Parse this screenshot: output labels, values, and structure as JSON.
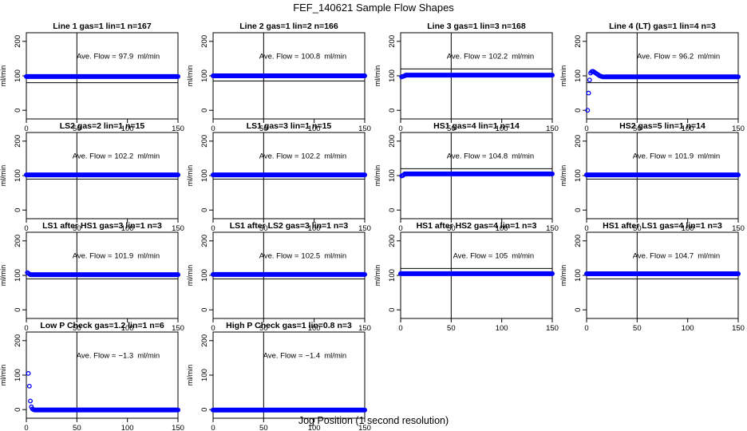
{
  "page": {
    "title": "FEF_140621  Sample Flow Shapes",
    "xlabel": "Jog Position (1 second resolution)",
    "ylabel": "ml/min",
    "x_ticks": [
      0,
      50,
      100,
      150
    ],
    "y_ticks": [
      0,
      100,
      200
    ],
    "y_tick_labels": [
      "0",
      "100",
      "200"
    ],
    "ave_prefix": "Ave. Flow =",
    "ave_unit": "ml/min"
  },
  "colors": {
    "points": "#0000ff",
    "axes": "#000000",
    "text": "#000000",
    "background": "#ffffff"
  },
  "chart_data": [
    {
      "type": "scatter",
      "title": "Line 1 gas=1 lin=1 n=167",
      "ave_flow": "97.9",
      "xlim": [
        0,
        150
      ],
      "ylim": [
        -25,
        225
      ],
      "vline_x": 50,
      "hline_y": 80,
      "series": [
        {
          "segments": [
            [
              0,
              150,
              97.9
            ]
          ],
          "points": []
        }
      ]
    },
    {
      "type": "scatter",
      "title": "Line 2 gas=1 lin=2 n=166",
      "ave_flow": "100.8",
      "xlim": [
        0,
        150
      ],
      "ylim": [
        -25,
        225
      ],
      "vline_x": 50,
      "hline_y": 85,
      "series": [
        {
          "segments": [
            [
              0,
              150,
              100
            ]
          ],
          "points": []
        }
      ]
    },
    {
      "type": "scatter",
      "title": "Line 3 gas=1 lin=3 n=168",
      "ave_flow": "102.2",
      "xlim": [
        0,
        150
      ],
      "ylim": [
        -25,
        225
      ],
      "vline_x": 50,
      "hline_y": 120,
      "series": [
        {
          "segments": [
            [
              5,
              150,
              102
            ]
          ],
          "points": [
            [
              1,
              97
            ],
            [
              2,
              98
            ],
            [
              3,
              99
            ],
            [
              4,
              100
            ]
          ]
        }
      ]
    },
    {
      "type": "scatter",
      "title": "Line 4 (LT) gas=1 lin=4 n=3",
      "ave_flow": "96.2",
      "xlim": [
        0,
        150
      ],
      "ylim": [
        -25,
        225
      ],
      "vline_x": 50,
      "hline_y": 80,
      "series": [
        {
          "segments": [
            [
              18,
              150,
              97
            ]
          ],
          "points": [
            [
              1,
              0
            ],
            [
              2,
              50
            ],
            [
              3,
              88
            ],
            [
              4,
              108
            ],
            [
              5,
              112
            ],
            [
              6,
              113
            ],
            [
              7,
              112
            ],
            [
              8,
              110
            ],
            [
              9,
              108
            ],
            [
              10,
              106
            ],
            [
              11,
              104
            ],
            [
              12,
              102
            ],
            [
              13,
              100
            ],
            [
              14,
              99
            ],
            [
              15,
              98
            ],
            [
              16,
              97
            ],
            [
              17,
              97
            ]
          ]
        }
      ]
    },
    {
      "type": "scatter",
      "title": "LS2 gas=2 lin=1 n=15",
      "ave_flow": "102.2",
      "xlim": [
        0,
        150
      ],
      "ylim": [
        -25,
        225
      ],
      "vline_x": 50,
      "hline_y": 90,
      "series": [
        {
          "segments": [
            [
              0,
              150,
              102
            ]
          ],
          "points": []
        }
      ]
    },
    {
      "type": "scatter",
      "title": "LS1 gas=3 lin=1 n=15",
      "ave_flow": "102.2",
      "xlim": [
        0,
        150
      ],
      "ylim": [
        -25,
        225
      ],
      "vline_x": 50,
      "hline_y": 90,
      "series": [
        {
          "segments": [
            [
              0,
              150,
              102
            ]
          ],
          "points": []
        }
      ]
    },
    {
      "type": "scatter",
      "title": "HS1 gas=4 lin=1 n=14",
      "ave_flow": "104.8",
      "xlim": [
        0,
        150
      ],
      "ylim": [
        -25,
        225
      ],
      "vline_x": 50,
      "hline_y": 120,
      "series": [
        {
          "segments": [
            [
              4,
              150,
              105
            ]
          ],
          "points": [
            [
              1,
              99
            ],
            [
              2,
              100
            ],
            [
              3,
              102
            ]
          ]
        }
      ]
    },
    {
      "type": "scatter",
      "title": "HS2 gas=5 lin=1 n=14",
      "ave_flow": "101.9",
      "xlim": [
        0,
        150
      ],
      "ylim": [
        -25,
        225
      ],
      "vline_x": 50,
      "hline_y": 90,
      "series": [
        {
          "segments": [
            [
              0,
              150,
              102
            ]
          ],
          "points": []
        }
      ]
    },
    {
      "type": "scatter",
      "title": "LS1 after HS1 gas=3 lin=1 n=3",
      "ave_flow": "101.9",
      "xlim": [
        0,
        150
      ],
      "ylim": [
        -25,
        225
      ],
      "vline_x": 50,
      "hline_y": 90,
      "series": [
        {
          "segments": [
            [
              4,
              150,
              102
            ]
          ],
          "points": [
            [
              1,
              108
            ],
            [
              2,
              106
            ],
            [
              3,
              104
            ]
          ]
        }
      ]
    },
    {
      "type": "scatter",
      "title": "LS1 after LS2 gas=3 lin=1 n=3",
      "ave_flow": "102.5",
      "xlim": [
        0,
        150
      ],
      "ylim": [
        -25,
        225
      ],
      "vline_x": 50,
      "hline_y": 90,
      "series": [
        {
          "segments": [
            [
              0,
              150,
              102.5
            ]
          ],
          "points": []
        }
      ]
    },
    {
      "type": "scatter",
      "title": "HS1 after HS2 gas=4 lin=1 n=3",
      "ave_flow": "105",
      "xlim": [
        0,
        150
      ],
      "ylim": [
        -25,
        225
      ],
      "vline_x": 50,
      "hline_y": 120,
      "series": [
        {
          "segments": [
            [
              0,
              150,
              105
            ]
          ],
          "points": []
        }
      ]
    },
    {
      "type": "scatter",
      "title": "HS1 after LS1 gas=4 lin=1 n=3",
      "ave_flow": "104.7",
      "xlim": [
        0,
        150
      ],
      "ylim": [
        -25,
        225
      ],
      "vline_x": 50,
      "hline_y": 90,
      "series": [
        {
          "segments": [
            [
              0,
              150,
              104.7
            ]
          ],
          "points": []
        }
      ]
    },
    {
      "type": "scatter",
      "title": "Low P Check gas=1.2 lin=1 n=6",
      "ave_flow": "−1.3",
      "xlim": [
        0,
        150
      ],
      "ylim": [
        -25,
        225
      ],
      "vline_x": 50,
      "hline_y": null,
      "series": [
        {
          "segments": [
            [
              8,
              150,
              -1
            ]
          ],
          "points": [
            [
              2,
              105
            ],
            [
              3,
              68
            ],
            [
              4,
              25
            ],
            [
              5,
              8
            ],
            [
              6,
              2
            ],
            [
              7,
              0
            ]
          ]
        }
      ]
    },
    {
      "type": "scatter",
      "title": "High P Check gas=1 lin=0.8 n=3",
      "ave_flow": "−1.4",
      "xlim": [
        0,
        150
      ],
      "ylim": [
        -25,
        225
      ],
      "vline_x": 50,
      "hline_y": null,
      "series": [
        {
          "segments": [
            [
              0,
              150,
              -1.4
            ]
          ],
          "points": []
        }
      ]
    }
  ]
}
